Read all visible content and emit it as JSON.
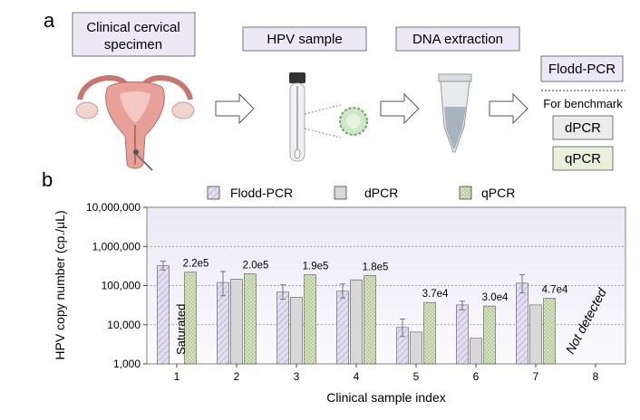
{
  "panel_a": {
    "label": "a",
    "step1": "Clinical cervical specimen",
    "step1_line1": "Clinical cervical",
    "step1_line2": "specimen",
    "step2": "HPV sample",
    "step3": "DNA extraction",
    "method_main": "Flodd-PCR",
    "benchmark_label": "For benchmark",
    "bench_methods": [
      "dPCR",
      "qPCR"
    ],
    "colors": {
      "purple_box": "#ece8f6",
      "gray_box": "#ececec",
      "green_box": "#e9f1dd",
      "uterus": "#e7a19a"
    }
  },
  "chart_data": {
    "panel_label": "b",
    "type": "bar",
    "scale": "log",
    "title": "",
    "xlabel": "Clinical sample index",
    "ylabel": "HPV copy number (cp./μL)",
    "categories": [
      "1",
      "2",
      "3",
      "4",
      "5",
      "6",
      "7",
      "8"
    ],
    "ylim": [
      1000,
      10000000
    ],
    "yticks": [
      1000,
      10000,
      100000,
      1000000,
      10000000
    ],
    "ytick_labels": [
      "1,000",
      "10,000",
      "100,000",
      "1,000,000",
      "10,000,000"
    ],
    "grid": "dashed horizontal at decades",
    "legend": [
      "Flodd-PCR",
      "dPCR",
      "qPCR"
    ],
    "legend_position": "top",
    "series": [
      {
        "name": "Flodd-PCR",
        "color": "#e3ddf2",
        "hatch": "diagonal",
        "values": [
          320000,
          120000,
          68000,
          72000,
          8500,
          32000,
          115000,
          null
        ],
        "errors": [
          [
            250000,
            420000
          ],
          [
            55000,
            230000
          ],
          [
            45000,
            105000
          ],
          [
            48000,
            110000
          ],
          [
            5000,
            14000
          ],
          [
            24000,
            40000
          ],
          [
            65000,
            190000
          ],
          null
        ]
      },
      {
        "name": "dPCR",
        "color": "#d8d8d8",
        "hatch": "none",
        "values": [
          null,
          145000,
          50000,
          140000,
          6500,
          4500,
          32000,
          null
        ],
        "errors": null
      },
      {
        "name": "qPCR",
        "color": "#d6e4c0",
        "hatch": "dots",
        "values": [
          220000,
          200000,
          190000,
          180000,
          37000,
          30000,
          47000,
          null
        ],
        "errors": null
      }
    ],
    "value_labels": [
      "2.2e5",
      "2.0e5",
      "1.9e5",
      "1.8e5",
      "3.7e4",
      "3.0e4",
      "4.7e4",
      ""
    ],
    "annotations": {
      "saturated": "Saturated",
      "not_detected": "Not detected"
    }
  }
}
